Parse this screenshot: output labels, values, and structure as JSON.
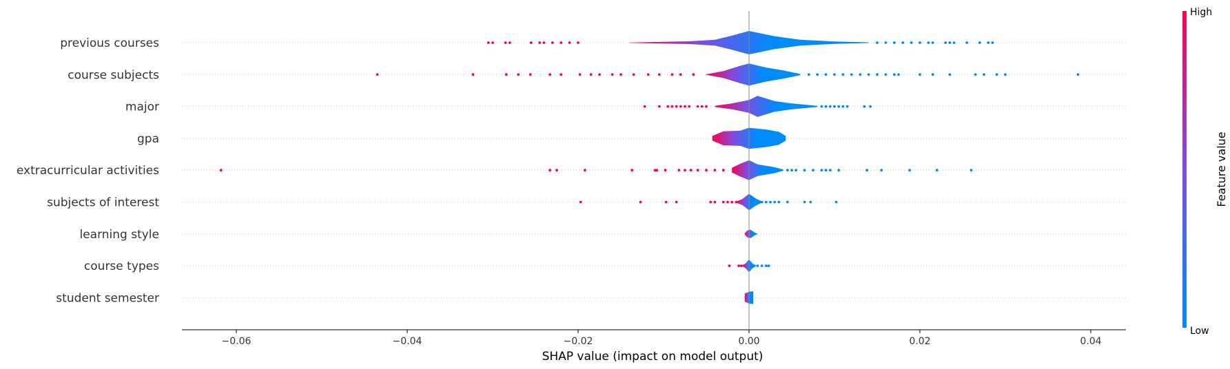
{
  "chart_data": {
    "type": "violin",
    "title": "",
    "xlabel": "SHAP value (impact on model output)",
    "ylabel": "",
    "xlim": [
      -0.0667,
      0.0434
    ],
    "xticks": [
      -0.06,
      -0.04,
      -0.02,
      0.0,
      0.02,
      0.04
    ],
    "xtick_labels": [
      "−0.06",
      "−0.04",
      "−0.02",
      "0.00",
      "0.02",
      "0.04"
    ],
    "features": [
      {
        "name": "previous courses",
        "width": [
          [
            -0.014,
            0.01
          ],
          [
            -0.007,
            0.12
          ],
          [
            -0.004,
            0.25
          ],
          [
            -0.002,
            0.6
          ],
          [
            0.0,
            1.0
          ],
          [
            0.003,
            0.55
          ],
          [
            0.006,
            0.25
          ],
          [
            0.01,
            0.1
          ],
          [
            0.014,
            0.03
          ]
        ],
        "low_points": [
          0.015,
          0.016,
          0.017,
          0.018,
          0.019,
          0.02,
          0.021,
          0.0215,
          0.023,
          0.0235,
          0.024,
          0.0255,
          0.027,
          0.028,
          0.0285
        ],
        "high_points": [
          -0.0305,
          -0.03,
          -0.0285,
          -0.028,
          -0.0255,
          -0.0245,
          -0.024,
          -0.023,
          -0.022,
          -0.021,
          -0.02
        ]
      },
      {
        "name": "course subjects",
        "width": [
          [
            -0.005,
            0.02
          ],
          [
            -0.003,
            0.3
          ],
          [
            -0.001,
            0.75
          ],
          [
            0.0,
            0.95
          ],
          [
            0.002,
            0.6
          ],
          [
            0.004,
            0.35
          ],
          [
            0.006,
            0.05
          ]
        ],
        "low_points": [
          0.007,
          0.008,
          0.009,
          0.01,
          0.011,
          0.012,
          0.013,
          0.014,
          0.015,
          0.016,
          0.017,
          0.0175,
          0.02,
          0.0215,
          0.0235,
          0.0265,
          0.0275,
          0.029,
          0.03,
          0.0385
        ],
        "high_points": [
          -0.0435,
          -0.0323,
          -0.0284,
          -0.027,
          -0.0256,
          -0.0233,
          -0.022,
          -0.0198,
          -0.0185,
          -0.0175,
          -0.016,
          -0.015,
          -0.0135,
          -0.0118,
          -0.0105,
          -0.009,
          -0.008,
          -0.0065
        ]
      },
      {
        "name": "major",
        "width": [
          [
            -0.004,
            0.05
          ],
          [
            -0.002,
            0.25
          ],
          [
            0.0,
            0.55
          ],
          [
            0.001,
            0.9
          ],
          [
            0.003,
            0.45
          ],
          [
            0.005,
            0.25
          ],
          [
            0.008,
            0.05
          ]
        ],
        "low_points": [
          0.0085,
          0.009,
          0.0095,
          0.01,
          0.0105,
          0.011,
          0.0115,
          0.0135,
          0.0142
        ],
        "high_points": [
          -0.0122,
          -0.0105,
          -0.0095,
          -0.009,
          -0.0085,
          -0.008,
          -0.0075,
          -0.007,
          -0.006,
          -0.0055,
          -0.005
        ]
      },
      {
        "name": "gpa",
        "width": [
          [
            -0.0043,
            0.2
          ],
          [
            -0.003,
            0.6
          ],
          [
            -0.001,
            0.65
          ],
          [
            0.0,
            0.9
          ],
          [
            0.002,
            0.75
          ],
          [
            0.0035,
            0.55
          ],
          [
            0.0043,
            0.2
          ]
        ],
        "low_points": [],
        "high_points": []
      },
      {
        "name": "extracurricular activities",
        "width": [
          [
            -0.002,
            0.2
          ],
          [
            -0.001,
            0.55
          ],
          [
            0.0,
            0.85
          ],
          [
            0.001,
            0.5
          ],
          [
            0.003,
            0.25
          ],
          [
            0.004,
            0.05
          ]
        ],
        "low_points": [
          0.0045,
          0.005,
          0.0055,
          0.0065,
          0.0075,
          0.0085,
          0.009,
          0.0095,
          0.0105,
          0.0138,
          0.0155,
          0.0188,
          0.022,
          0.026
        ],
        "high_points": [
          -0.0618,
          -0.0233,
          -0.0225,
          -0.0192,
          -0.0137,
          -0.011,
          -0.0108,
          -0.0098,
          -0.0082,
          -0.0075,
          -0.0068,
          -0.006,
          -0.005,
          -0.004,
          -0.003
        ]
      },
      {
        "name": "subjects of interest",
        "width": [
          [
            -0.0015,
            0.05
          ],
          [
            -0.0008,
            0.25
          ],
          [
            0.0,
            0.7
          ],
          [
            0.0008,
            0.3
          ],
          [
            0.0015,
            0.05
          ]
        ],
        "low_points": [
          0.0015,
          0.002,
          0.0025,
          0.003,
          0.0035,
          0.0045,
          0.0065,
          0.0072,
          0.0102
        ],
        "high_points": [
          -0.0197,
          -0.0127,
          -0.0097,
          -0.0085,
          -0.0045,
          -0.004,
          -0.003,
          -0.0025,
          -0.002,
          -0.0015
        ]
      },
      {
        "name": "learning style",
        "width": [
          [
            -0.0005,
            0.05
          ],
          [
            -0.0002,
            0.3
          ],
          [
            0.0002,
            0.35
          ],
          [
            0.0007,
            0.1
          ],
          [
            0.001,
            0.02
          ]
        ],
        "low_points": [],
        "high_points": []
      },
      {
        "name": "course types",
        "width": [
          [
            -0.0008,
            0.05
          ],
          [
            -0.0004,
            0.2
          ],
          [
            0.0,
            0.55
          ],
          [
            0.0004,
            0.2
          ],
          [
            0.0008,
            0.05
          ]
        ],
        "low_points": [
          0.001,
          0.0015,
          0.002,
          0.0023
        ],
        "high_points": [
          -0.0023,
          -0.0012,
          -0.0009
        ]
      },
      {
        "name": "student semester",
        "width": [
          [
            -0.0005,
            0.35
          ],
          [
            0.0,
            0.5
          ],
          [
            0.0005,
            0.55
          ]
        ],
        "low_points": [],
        "high_points": []
      }
    ],
    "colorbar": {
      "label": "Feature value",
      "high_label": "High",
      "low_label": "Low",
      "low_color": "#008bfb",
      "high_color": "#ff0051",
      "mid_color": "#7c4de0"
    }
  }
}
